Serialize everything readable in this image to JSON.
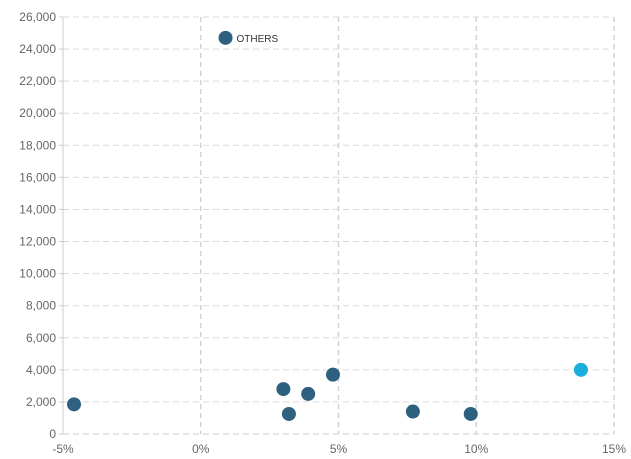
{
  "chart_data": {
    "type": "scatter",
    "xlim": [
      -5,
      15
    ],
    "ylim": [
      0,
      26000
    ],
    "x_ticks": [
      -5,
      0,
      5,
      10,
      15
    ],
    "x_tick_labels": [
      "-5%",
      "0%",
      "5%",
      "10%",
      "15%"
    ],
    "y_ticks": [
      0,
      2000,
      4000,
      6000,
      8000,
      10000,
      12000,
      14000,
      16000,
      18000,
      20000,
      22000,
      24000,
      26000
    ],
    "y_tick_labels": [
      "0",
      "2,000",
      "4,000",
      "6,000",
      "8,000",
      "10,000",
      "12,000",
      "14,000",
      "16,000",
      "18,000",
      "20,000",
      "22,000",
      "24,000",
      "26,000"
    ],
    "grid": true,
    "points": [
      {
        "x": 0.9,
        "y": 24700,
        "label": "OTHERS",
        "color": "#2e6080"
      },
      {
        "x": -4.6,
        "y": 1850,
        "label": "",
        "color": "#2e6080"
      },
      {
        "x": 3.0,
        "y": 2800,
        "label": "",
        "color": "#2e6080"
      },
      {
        "x": 3.2,
        "y": 1250,
        "label": "",
        "color": "#2e6080"
      },
      {
        "x": 3.9,
        "y": 2500,
        "label": "",
        "color": "#2e6080"
      },
      {
        "x": 4.8,
        "y": 3700,
        "label": "",
        "color": "#2e6080"
      },
      {
        "x": 7.7,
        "y": 1400,
        "label": "",
        "color": "#2e6080"
      },
      {
        "x": 9.8,
        "y": 1250,
        "label": "",
        "color": "#2e6080"
      },
      {
        "x": 13.8,
        "y": 4000,
        "label": "",
        "color": "#1aaedb"
      }
    ]
  }
}
